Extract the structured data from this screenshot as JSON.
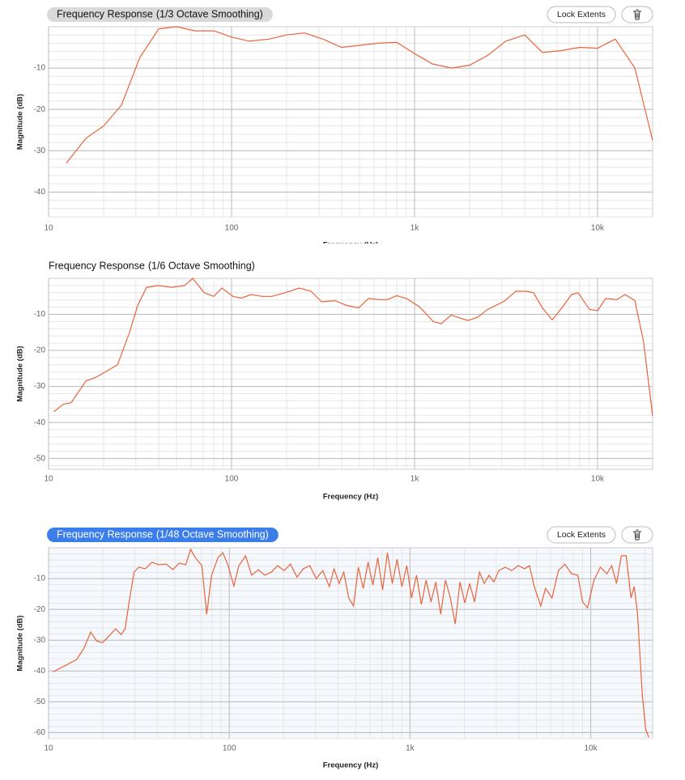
{
  "chart_data": [
    {
      "type": "line",
      "title": "Frequency Response",
      "subtitle": "(1/3 Octave Smoothing)",
      "title_background": "#d9d9d9",
      "button": "Lock Extents",
      "xlabel": "Frequency (Hz)",
      "ylabel": "Magnitude (dB)",
      "xscale": "log",
      "grid": true,
      "color": "#e8643c",
      "xlim": [
        10,
        20000
      ],
      "xticks": [
        10,
        100,
        {
          "value": 1000,
          "label": "1k"
        },
        {
          "value": 10000,
          "label": "10k"
        }
      ],
      "ylim": [
        -46,
        0
      ],
      "yticks": [
        -10,
        -20,
        -30,
        -40
      ],
      "x": [
        12.5,
        16,
        20,
        25,
        31.5,
        40,
        50,
        63,
        80,
        100,
        125,
        160,
        200,
        250,
        315,
        400,
        500,
        630,
        800,
        1000,
        1250,
        1600,
        2000,
        2500,
        3150,
        4000,
        5000,
        6300,
        8000,
        10000,
        12500,
        16000,
        20000
      ],
      "values": [
        -33,
        -27,
        -24,
        -19,
        -7.5,
        -0.5,
        0,
        -1,
        -1,
        -2.5,
        -3.5,
        -3,
        -2,
        -1.5,
        -3,
        -5,
        -4.5,
        -4,
        -3.8,
        -6.5,
        -9,
        -10,
        -9.3,
        -7,
        -3.5,
        -2,
        -6.2,
        -5.8,
        -5,
        -5.2,
        -3,
        -10,
        -27.5
      ]
    },
    {
      "type": "line",
      "title": "Frequency Response",
      "subtitle": "(1/6 Octave Smoothing)",
      "xlabel": "Frequency (Hz)",
      "ylabel": "Magnitude (dB)",
      "xscale": "log",
      "grid": true,
      "color": "#e8643c",
      "xlim": [
        10,
        20000
      ],
      "xticks": [
        10,
        100,
        {
          "value": 1000,
          "label": "1k"
        },
        {
          "value": 10000,
          "label": "10k"
        }
      ],
      "ylim": [
        -53,
        0
      ],
      "yticks": [
        -10,
        -20,
        -30,
        -40,
        -50
      ],
      "x": [
        10.7,
        12,
        13.3,
        16,
        18.1,
        23.8,
        27.7,
        30.7,
        34.3,
        40,
        47.1,
        55.4,
        61.4,
        70.8,
        80,
        88.5,
        102,
        113,
        128,
        147,
        166,
        196,
        235,
        272,
        310,
        368,
        425,
        495,
        560,
        652,
        708,
        800,
        903,
        1064,
        1265,
        1400,
        1582,
        1959,
        2213,
        2500,
        3097,
        3573,
        4079,
        4470,
        5000,
        5650,
        6383,
        7211,
        7833,
        9033,
        10000,
        11070,
        12770,
        14130,
        16000,
        17870,
        20000
      ],
      "values": [
        -37,
        -35,
        -34.5,
        -28.5,
        -27.5,
        -24,
        -15,
        -7.5,
        -2.5,
        -2,
        -2.5,
        -2,
        0,
        -4,
        -5,
        -2.7,
        -5,
        -5.5,
        -4.5,
        -5,
        -5,
        -4,
        -2.7,
        -3.6,
        -6.5,
        -6.2,
        -7.5,
        -8.2,
        -5.6,
        -5.9,
        -5.9,
        -4.8,
        -5.6,
        -7.9,
        -12,
        -12.6,
        -10.2,
        -11.7,
        -10.8,
        -8.7,
        -6.3,
        -3.6,
        -3.6,
        -4,
        -8.2,
        -11.5,
        -8.2,
        -4.5,
        -4,
        -8.6,
        -9,
        -5.6,
        -5.9,
        -4.5,
        -6.2,
        -17.7,
        -38.2
      ]
    },
    {
      "type": "line",
      "title": "Frequency Response",
      "subtitle": "(1/48 Octave Smoothing)",
      "title_background": "#3b7de9",
      "button": "Lock Extents",
      "xlabel": "Frequency (Hz)",
      "ylabel": "Magnitude (dB)",
      "xscale": "log",
      "grid": true,
      "color": "#e8643c",
      "xlim": [
        10,
        22000
      ],
      "xticks": [
        10,
        100,
        {
          "value": 1000,
          "label": "1k"
        },
        {
          "value": 10000,
          "label": "10k"
        }
      ],
      "ylim": [
        -62,
        0
      ],
      "yticks": [
        -10,
        -20,
        -30,
        -40,
        -50,
        -60
      ],
      "x": [
        10.6,
        14.3,
        15.7,
        17.1,
        18.5,
        19.9,
        21.8,
        23.5,
        25.2,
        26.5,
        27.9,
        29.7,
        31.6,
        34.3,
        37.3,
        40.5,
        44.8,
        48.7,
        52.8,
        57.4,
        61.1,
        64.9,
        70.5,
        75,
        79.8,
        86.6,
        92.1,
        98,
        106,
        113,
        123,
        133,
        145,
        157,
        171,
        185,
        201,
        218,
        237,
        257,
        279,
        303,
        329,
        358,
        380,
        405,
        430,
        458,
        487,
        518,
        551,
        586,
        623,
        663,
        705,
        750,
        798,
        848,
        902,
        960,
        1020,
        1086,
        1155,
        1228,
        1306,
        1389,
        1478,
        1572,
        1672,
        1778,
        1891,
        2012,
        2140,
        2276,
        2421,
        2575,
        2738,
        2912,
        3098,
        3364,
        3653,
        3966,
        4306,
        4580,
        4870,
        5289,
        5623,
        6105,
        6629,
        7197,
        7814,
        8484,
        9023,
        9596,
        10420,
        11310,
        12280,
        13060,
        13890,
        14770,
        15710,
        16710,
        17410,
        18150,
        19300,
        20130,
        20950
      ],
      "values": [
        -40.3,
        -36.3,
        -32.6,
        -27.4,
        -30.3,
        -30.8,
        -28.4,
        -26.3,
        -28.2,
        -26.3,
        -17.6,
        -7.9,
        -6.3,
        -6.8,
        -4.7,
        -5.5,
        -5.3,
        -7.1,
        -5,
        -5.5,
        -0.5,
        -3.2,
        -5.8,
        -21.6,
        -8.9,
        -3.2,
        -1.6,
        -5.3,
        -12.4,
        -5.8,
        -2.6,
        -8.9,
        -7.1,
        -8.9,
        -7.9,
        -5.8,
        -7.4,
        -5.3,
        -9.5,
        -6.8,
        -5.8,
        -10,
        -7.4,
        -12.6,
        -6.8,
        -11.6,
        -7.9,
        -16.3,
        -18.9,
        -6.3,
        -13.2,
        -4.7,
        -12.1,
        -3.2,
        -13.7,
        -1.6,
        -11.6,
        -3.7,
        -12.6,
        -5.8,
        -16.3,
        -8.9,
        -18.4,
        -10.5,
        -17.6,
        -11.1,
        -21.6,
        -10.5,
        -16.3,
        -24.7,
        -11.1,
        -17.9,
        -11.6,
        -17.6,
        -7.9,
        -11.6,
        -8.9,
        -11.1,
        -7.4,
        -6.3,
        -7.4,
        -5.8,
        -6.8,
        -5.8,
        -12.6,
        -18.9,
        -13.2,
        -16.3,
        -7.4,
        -5.3,
        -8.4,
        -8.9,
        -17.6,
        -19.5,
        -10.5,
        -6.3,
        -8.4,
        -5.8,
        -11.6,
        -2.6,
        -2.6,
        -16.3,
        -12.6,
        -21.6,
        -47.9,
        -58.9,
        -61.6
      ]
    }
  ]
}
